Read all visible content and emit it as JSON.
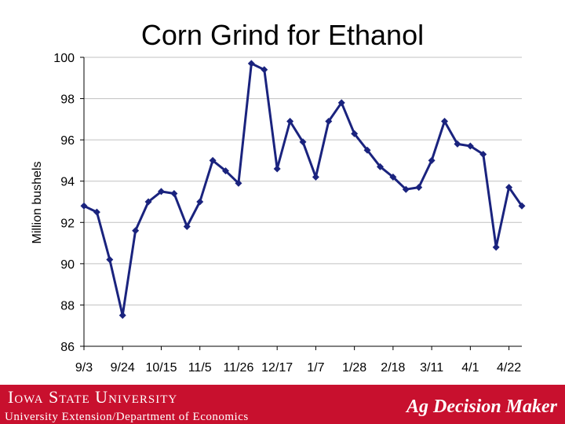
{
  "colors": {
    "line": "#1a237e",
    "footer": "#c8102e",
    "grid": "#c0c0c0"
  },
  "footer": {
    "institution": "Iowa State University",
    "department": "University Extension/Department of Economics",
    "brand": "Ag Decision Maker"
  },
  "chart_data": {
    "type": "line",
    "title": "Corn Grind for Ethanol",
    "xlabel": "",
    "ylabel": "Million bushels",
    "ylim": [
      86,
      100
    ],
    "yticks": [
      86,
      88,
      90,
      92,
      94,
      96,
      98,
      100
    ],
    "grid": true,
    "legend": "none",
    "xtick_labels": [
      "9/3",
      "9/24",
      "10/15",
      "11/5",
      "11/26",
      "12/17",
      "1/7",
      "1/28",
      "2/18",
      "3/11",
      "4/1",
      "4/22"
    ],
    "xtick_positions": [
      0,
      3,
      6,
      9,
      12,
      15,
      18,
      21,
      24,
      27,
      30,
      33
    ],
    "series": [
      {
        "values": [
          92.8,
          92.5,
          90.2,
          87.5,
          91.6,
          93.0,
          93.5,
          93.4,
          91.8,
          93.0,
          95.0,
          94.5,
          93.9,
          99.7,
          99.4,
          94.6,
          96.9,
          95.9,
          94.2,
          96.9,
          97.8,
          96.3,
          95.5,
          94.7,
          94.2,
          93.6,
          93.7,
          95.0,
          96.9,
          95.8,
          95.7,
          95.3,
          90.8,
          93.7,
          92.8
        ]
      }
    ]
  }
}
